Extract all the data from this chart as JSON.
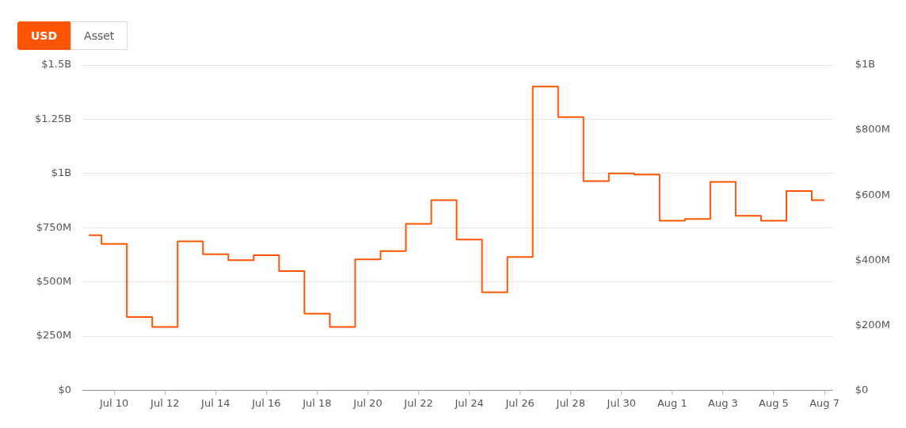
{
  "chart_data": {
    "type": "step",
    "annotations": [
      "USD",
      "Asset"
    ],
    "x": [
      "--07-09",
      "--07-10",
      "--07-11",
      "--07-12",
      "--07-13",
      "--07-14",
      "--07-15",
      "--07-16",
      "--07-17",
      "--07-18",
      "--07-19",
      "--07-20",
      "--07-21",
      "--07-22",
      "--07-23",
      "--07-24",
      "--07-25",
      "--07-26",
      "--07-27",
      "--07-28",
      "--07-29",
      "--07-30",
      "--07-31",
      "--08-01",
      "--08-02",
      "--08-03",
      "--08-04",
      "--08-05",
      "--08-06",
      "--08-07"
    ],
    "series": [
      {
        "color": "#ff5500",
        "values": [
          715000000,
          675000000,
          338000000,
          292000000,
          687000000,
          627000000,
          600000000,
          623000000,
          550000000,
          353000000,
          292000000,
          604000000,
          642000000,
          767000000,
          877000000,
          695000000,
          452000000,
          615000000,
          1400000000,
          1260000000,
          965000000,
          1000000000,
          995000000,
          782000000,
          790000000,
          961000000,
          805000000,
          782000000,
          919000000,
          877000000
        ]
      }
    ],
    "xlim": [
      "--07-08T18:00",
      "--08-07T08:00"
    ],
    "xticks": [
      {
        "value": "--07-10",
        "label": "Jul 10"
      },
      {
        "value": "--07-12",
        "label": "Jul 12"
      },
      {
        "value": "--07-14",
        "label": "Jul 14"
      },
      {
        "value": "--07-16",
        "label": "Jul 16"
      },
      {
        "value": "--07-18",
        "label": "Jul 18"
      },
      {
        "value": "--07-20",
        "label": "Jul 20"
      },
      {
        "value": "--07-22",
        "label": "Jul 22"
      },
      {
        "value": "--07-24",
        "label": "Jul 24"
      },
      {
        "value": "--07-26",
        "label": "Jul 26"
      },
      {
        "value": "--07-28",
        "label": "Jul 28"
      },
      {
        "value": "--07-30",
        "label": "Jul 30"
      },
      {
        "value": "--08-01",
        "label": "Aug 1"
      },
      {
        "value": "--08-03",
        "label": "Aug 3"
      },
      {
        "value": "--08-05",
        "label": "Aug 5"
      },
      {
        "value": "--08-07",
        "label": "Aug 7"
      }
    ],
    "ylim": [
      0,
      1500000000
    ],
    "yticks": [
      {
        "value": 0,
        "label": "$0"
      },
      {
        "value": 250000000,
        "label": "$250M"
      },
      {
        "value": 500000000,
        "label": "$500M"
      },
      {
        "value": 750000000,
        "label": "$750M"
      },
      {
        "value": 1000000000,
        "label": "$1B"
      },
      {
        "value": 1250000000,
        "label": "$1.25B"
      },
      {
        "value": 1500000000,
        "label": "$1.5B"
      }
    ],
    "y2lim": [
      0,
      1000000000
    ],
    "y2ticks": [
      {
        "value": 0,
        "label": "$0"
      },
      {
        "value": 200000000,
        "label": "$200M"
      },
      {
        "value": 400000000,
        "label": "$400M"
      },
      {
        "value": 600000000,
        "label": "$600M"
      },
      {
        "value": 800000000,
        "label": "$800M"
      },
      {
        "value": 1000000000,
        "label": "$1B"
      }
    ],
    "grid": "y",
    "legend": false,
    "marker": "none",
    "line_style": "solid"
  }
}
